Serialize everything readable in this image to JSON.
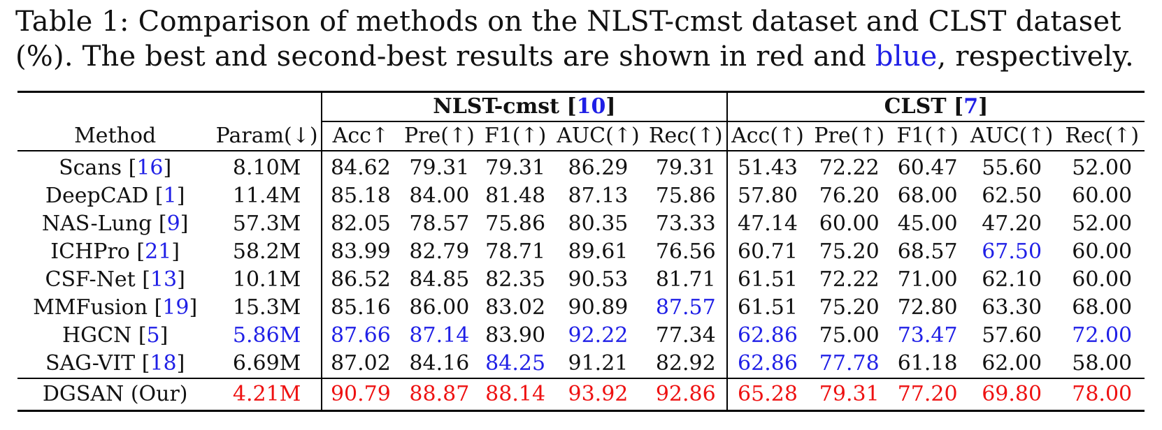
{
  "caption": {
    "part1": "Table 1: Comparison of methods on the NLST-cmst dataset and CLST dataset (%). The best and second-best results are shown in red and ",
    "blue_word": "blue",
    "part2": ", respectively."
  },
  "table": {
    "groups": [
      {
        "name": "NLST-cmst",
        "ref": "10"
      },
      {
        "name": "CLST",
        "ref": "7"
      }
    ],
    "columns": [
      "Method",
      "Param(↓)",
      "Acc↑",
      "Pre(↑)",
      "F1(↑)",
      "AUC(↑)",
      "Rec(↑)",
      "Acc(↑)",
      "Pre(↑)",
      "F1(↑)",
      "AUC(↑)",
      "Rec(↑)"
    ],
    "rows": [
      {
        "method": "Scans",
        "ref": "16",
        "cells": [
          "8.10M",
          "84.62",
          "79.31",
          "79.31",
          "86.29",
          "79.31",
          "51.43",
          "72.22",
          "60.47",
          "55.60",
          "52.00"
        ],
        "styles": [
          "",
          "",
          "",
          "",
          "",
          "",
          "",
          "",
          "",
          "",
          ""
        ]
      },
      {
        "method": "DeepCAD",
        "ref": "1",
        "cells": [
          "11.4M",
          "85.18",
          "84.00",
          "81.48",
          "87.13",
          "75.86",
          "57.80",
          "76.20",
          "68.00",
          "62.50",
          "60.00"
        ],
        "styles": [
          "",
          "",
          "",
          "",
          "",
          "",
          "",
          "",
          "",
          "",
          ""
        ]
      },
      {
        "method": "NAS-Lung",
        "ref": "9",
        "cells": [
          "57.3M",
          "82.05",
          "78.57",
          "75.86",
          "80.35",
          "73.33",
          "47.14",
          "60.00",
          "45.00",
          "47.20",
          "52.00"
        ],
        "styles": [
          "",
          "",
          "",
          "",
          "",
          "",
          "",
          "",
          "",
          "",
          ""
        ]
      },
      {
        "method": "ICHPro",
        "ref": "21",
        "cells": [
          "58.2M",
          "83.99",
          "82.79",
          "78.71",
          "89.61",
          "76.56",
          "60.71",
          "75.20",
          "68.57",
          "67.50",
          "60.00"
        ],
        "styles": [
          "",
          "",
          "",
          "",
          "",
          "",
          "",
          "",
          "",
          "blue",
          ""
        ]
      },
      {
        "method": "CSF-Net",
        "ref": "13",
        "cells": [
          "10.1M",
          "86.52",
          "84.85",
          "82.35",
          "90.53",
          "81.71",
          "61.51",
          "72.22",
          "71.00",
          "62.10",
          "60.00"
        ],
        "styles": [
          "",
          "",
          "",
          "",
          "",
          "",
          "",
          "",
          "",
          "",
          ""
        ]
      },
      {
        "method": "MMFusion",
        "ref": "19",
        "cells": [
          "15.3M",
          "85.16",
          "86.00",
          "83.02",
          "90.89",
          "87.57",
          "61.51",
          "75.20",
          "72.80",
          "63.30",
          "68.00"
        ],
        "styles": [
          "",
          "",
          "",
          "",
          "",
          "blue",
          "",
          "",
          "",
          "",
          ""
        ]
      },
      {
        "method": "HGCN",
        "ref": "5",
        "cells": [
          "5.86M",
          "87.66",
          "87.14",
          "83.90",
          "92.22",
          "77.34",
          "62.86",
          "75.00",
          "73.47",
          "57.60",
          "72.00"
        ],
        "styles": [
          "blue",
          "blue",
          "blue",
          "",
          "blue",
          "",
          "blue",
          "",
          "blue",
          "",
          "blue"
        ]
      },
      {
        "method": "SAG-VIT",
        "ref": "18",
        "cells": [
          "6.69M",
          "87.02",
          "84.16",
          "84.25",
          "91.21",
          "82.92",
          "62.86",
          "77.78",
          "61.18",
          "62.00",
          "58.00"
        ],
        "styles": [
          "",
          "",
          "",
          "blue",
          "",
          "",
          "blue",
          "blue",
          "",
          "",
          ""
        ]
      }
    ],
    "final_row": {
      "method": "DGSAN (Our)",
      "cells": [
        "4.21M",
        "90.79",
        "88.87",
        "88.14",
        "93.92",
        "92.86",
        "65.28",
        "79.31",
        "77.20",
        "69.80",
        "78.00"
      ]
    }
  },
  "colors": {
    "best": "#ee1111",
    "second": "#1f1fe6"
  }
}
